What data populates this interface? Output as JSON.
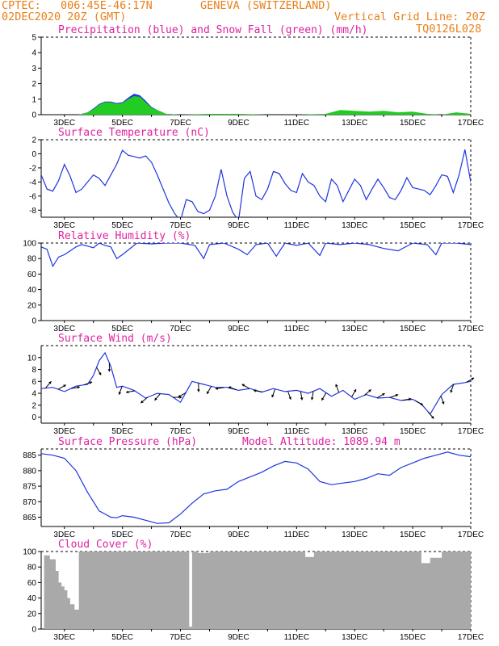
{
  "header": {
    "line1_left": "CPTEC:",
    "line1_coords": "006:45E-46:17N",
    "line1_location": "GENEVA (SWITZERLAND)",
    "line2_left": "02DEC2020 20Z (GMT)",
    "line2_grid": "Vertical Grid Line: 20Z",
    "line2_code": "TQ0126L028"
  },
  "colors": {
    "header": "#e8801a",
    "title": "#e020a0",
    "line": "#1f35e0",
    "snow": "#22cc22",
    "precip": "#1f35e0",
    "cloud": "#a9a9a9",
    "wind": "#000000"
  },
  "x_ticks": [
    "3DEC",
    "5DEC",
    "7DEC",
    "9DEC",
    "11DEC",
    "13DEC",
    "15DEC",
    "17DEC"
  ],
  "chart_data": [
    {
      "type": "area",
      "title": "Precipitation (blue) and Snow Fall (green) (mm/h)",
      "ylim": [
        0,
        5
      ],
      "yticks": [
        0,
        1,
        2,
        3,
        4,
        5
      ],
      "xlim_days": [
        2.2,
        17.0
      ],
      "x_tick_labels": [
        "3DEC",
        "5DEC",
        "7DEC",
        "9DEC",
        "11DEC",
        "13DEC",
        "15DEC",
        "17DEC"
      ],
      "series": [
        {
          "name": "Precipitation",
          "color": "blue",
          "x": [
            3.5,
            3.8,
            4.0,
            4.2,
            4.4,
            4.6,
            4.8,
            5.0,
            5.2,
            5.4,
            5.6,
            5.8,
            6.0,
            6.2,
            6.5,
            7.0
          ],
          "y": [
            0.0,
            0.15,
            0.4,
            0.7,
            0.85,
            0.85,
            0.75,
            0.8,
            1.1,
            1.35,
            1.25,
            0.9,
            0.5,
            0.3,
            0.05,
            0.0
          ]
        },
        {
          "name": "Snow Fall",
          "color": "green",
          "x": [
            3.5,
            3.8,
            4.0,
            4.2,
            4.4,
            4.6,
            4.8,
            5.0,
            5.2,
            5.4,
            5.6,
            5.8,
            6.0,
            6.2,
            6.5,
            7.0,
            8.0,
            9.0,
            10.0,
            11.0,
            12.0,
            12.5,
            13.0,
            13.5,
            14.0,
            14.5,
            15.0,
            15.5,
            16.0,
            16.5,
            17.0
          ],
          "y": [
            0.0,
            0.15,
            0.35,
            0.65,
            0.8,
            0.8,
            0.7,
            0.75,
            1.0,
            1.2,
            1.15,
            0.8,
            0.45,
            0.3,
            0.05,
            0.0,
            0.05,
            0.05,
            0.0,
            0.0,
            0.05,
            0.3,
            0.25,
            0.2,
            0.25,
            0.15,
            0.2,
            0.05,
            0.0,
            0.15,
            0.05
          ]
        }
      ]
    },
    {
      "type": "line",
      "title": "Surface Temperature (nC)",
      "ylim": [
        -9,
        2
      ],
      "yticks": [
        -8,
        -6,
        -4,
        -2,
        0,
        2
      ],
      "xlim_days": [
        2.2,
        17.0
      ],
      "x_tick_labels": [
        "3DEC",
        "5DEC",
        "7DEC",
        "9DEC",
        "11DEC",
        "13DEC",
        "15DEC",
        "17DEC"
      ],
      "series": [
        {
          "name": "Temperature",
          "x": [
            2.2,
            2.4,
            2.6,
            2.8,
            3.0,
            3.2,
            3.4,
            3.6,
            3.8,
            4.0,
            4.2,
            4.4,
            4.6,
            4.8,
            5.0,
            5.2,
            5.4,
            5.6,
            5.8,
            6.0,
            6.2,
            6.4,
            6.6,
            6.8,
            7.0,
            7.2,
            7.4,
            7.6,
            7.8,
            8.0,
            8.2,
            8.4,
            8.6,
            8.8,
            9.0,
            9.2,
            9.4,
            9.6,
            9.8,
            10.0,
            10.2,
            10.4,
            10.6,
            10.8,
            11.0,
            11.2,
            11.4,
            11.6,
            11.8,
            12.0,
            12.2,
            12.4,
            12.6,
            12.8,
            13.0,
            13.2,
            13.4,
            13.6,
            13.8,
            14.0,
            14.2,
            14.4,
            14.6,
            14.8,
            15.0,
            15.2,
            15.4,
            15.6,
            15.8,
            16.0,
            16.2,
            16.4,
            16.6,
            16.8,
            17.0
          ],
          "y": [
            -3.0,
            -5.0,
            -5.3,
            -3.8,
            -1.5,
            -3.2,
            -5.5,
            -5.0,
            -4.0,
            -3.0,
            -3.5,
            -4.5,
            -3.0,
            -1.5,
            0.5,
            -0.2,
            -0.4,
            -0.6,
            -0.3,
            -1.2,
            -3.0,
            -5.0,
            -7.0,
            -8.5,
            -9.5,
            -6.5,
            -6.8,
            -8.2,
            -8.5,
            -8.0,
            -6.0,
            -2.2,
            -6.0,
            -8.3,
            -9.5,
            -3.5,
            -2.5,
            -6.0,
            -6.5,
            -5.0,
            -2.5,
            -2.8,
            -4.2,
            -5.2,
            -5.5,
            -2.8,
            -4.0,
            -4.5,
            -6.0,
            -6.8,
            -3.6,
            -4.5,
            -6.8,
            -5.2,
            -3.6,
            -4.5,
            -6.5,
            -5.0,
            -3.6,
            -4.8,
            -6.2,
            -6.5,
            -5.2,
            -3.4,
            -4.8,
            -5.0,
            -5.2,
            -5.8,
            -4.5,
            -3.0,
            -3.2,
            -5.5,
            -3.0,
            0.6,
            -4.0
          ]
        }
      ]
    },
    {
      "type": "line",
      "title": "Relative Humidity (%)",
      "ylim": [
        0,
        100
      ],
      "yticks": [
        0,
        20,
        40,
        60,
        80,
        100
      ],
      "xlim_days": [
        2.2,
        17.0
      ],
      "x_tick_labels": [
        "3DEC",
        "5DEC",
        "7DEC",
        "9DEC",
        "11DEC",
        "13DEC",
        "15DEC",
        "17DEC"
      ],
      "series": [
        {
          "name": "Relative Humidity",
          "x": [
            2.2,
            2.4,
            2.6,
            2.8,
            3.0,
            3.2,
            3.4,
            3.6,
            3.8,
            4.0,
            4.2,
            4.4,
            4.6,
            4.8,
            5.0,
            5.5,
            6.0,
            6.5,
            7.0,
            7.5,
            7.8,
            8.0,
            8.5,
            9.0,
            9.3,
            9.6,
            10.0,
            10.3,
            10.6,
            11.0,
            11.4,
            11.8,
            12.0,
            12.5,
            13.0,
            13.5,
            14.0,
            14.5,
            15.0,
            15.5,
            15.8,
            16.0,
            16.5,
            17.0
          ],
          "y": [
            95,
            92,
            70,
            82,
            85,
            90,
            95,
            98,
            96,
            94,
            100,
            97,
            95,
            80,
            85,
            100,
            99,
            100,
            100,
            97,
            80,
            98,
            100,
            92,
            85,
            98,
            100,
            83,
            100,
            97,
            100,
            84,
            100,
            98,
            100,
            98,
            93,
            90,
            100,
            98,
            85,
            100,
            100,
            98
          ]
        }
      ]
    },
    {
      "type": "line",
      "title": "Surface Wind (m/s)",
      "ylim": [
        -1,
        12
      ],
      "yticks": [
        0,
        2,
        4,
        6,
        8,
        10
      ],
      "xlim_days": [
        2.2,
        17.0
      ],
      "x_tick_labels": [
        "3DEC",
        "5DEC",
        "7DEC",
        "9DEC",
        "11DEC",
        "13DEC",
        "15DEC",
        "17DEC"
      ],
      "series": [
        {
          "name": "Wind Speed",
          "x": [
            2.2,
            2.6,
            3.0,
            3.4,
            3.8,
            4.0,
            4.2,
            4.4,
            4.6,
            4.8,
            5.0,
            5.4,
            5.8,
            6.2,
            6.6,
            7.0,
            7.4,
            7.8,
            8.2,
            8.6,
            9.0,
            9.4,
            9.8,
            10.2,
            10.6,
            11.0,
            11.4,
            11.8,
            12.2,
            12.6,
            13.0,
            13.4,
            13.8,
            14.2,
            14.6,
            15.0,
            15.3,
            15.6,
            16.0,
            16.4,
            16.8,
            17.0
          ],
          "y": [
            4.8,
            5.0,
            4.3,
            5.2,
            5.5,
            7.0,
            9.5,
            10.8,
            8.5,
            5.0,
            5.2,
            4.5,
            3.2,
            4.0,
            3.8,
            2.5,
            6.0,
            5.5,
            5.0,
            5.0,
            4.5,
            4.8,
            4.2,
            4.8,
            4.3,
            4.5,
            4.0,
            4.8,
            3.5,
            4.5,
            3.0,
            3.8,
            3.2,
            3.3,
            2.8,
            3.0,
            2.2,
            0.5,
            3.8,
            5.5,
            5.8,
            6.0
          ]
        }
      ],
      "wind_vectors_dir_deg": [
        40,
        60,
        80,
        70,
        150,
        180,
        200,
        260,
        230,
        220,
        90,
        240,
        180,
        210,
        260,
        290,
        300,
        280,
        200,
        160,
        170,
        190,
        210,
        340,
        30,
        50,
        60,
        70,
        80,
        120,
        140,
        160,
        200,
        60
      ]
    },
    {
      "type": "line",
      "title": "Surface Pressure (hPa)",
      "annotation": "Model Altitude: 1089.94 m",
      "ylim": [
        862,
        887
      ],
      "yticks": [
        865,
        870,
        875,
        880,
        885
      ],
      "xlim_days": [
        2.2,
        17.0
      ],
      "x_tick_labels": [
        "3DEC",
        "5DEC",
        "7DEC",
        "9DEC",
        "11DEC",
        "13DEC",
        "15DEC",
        "17DEC"
      ],
      "series": [
        {
          "name": "Pressure",
          "x": [
            2.2,
            2.6,
            3.0,
            3.4,
            3.8,
            4.2,
            4.6,
            4.8,
            5.0,
            5.4,
            5.8,
            6.2,
            6.6,
            7.0,
            7.4,
            7.8,
            8.2,
            8.6,
            9.0,
            9.4,
            9.8,
            10.2,
            10.6,
            11.0,
            11.4,
            11.8,
            12.2,
            12.6,
            13.0,
            13.4,
            13.8,
            14.2,
            14.6,
            15.0,
            15.4,
            15.8,
            16.2,
            16.6,
            17.0
          ],
          "y": [
            885.5,
            885.0,
            884.0,
            880.0,
            873.0,
            867.0,
            865.0,
            864.8,
            865.5,
            865.0,
            864.0,
            863.0,
            863.2,
            866.0,
            869.5,
            872.5,
            873.5,
            874.0,
            876.5,
            878.0,
            879.5,
            881.5,
            883.0,
            882.5,
            880.5,
            876.5,
            875.5,
            876.0,
            876.5,
            877.5,
            879.0,
            878.5,
            881.0,
            882.5,
            884.0,
            885.0,
            886.0,
            885.0,
            884.5
          ]
        }
      ]
    },
    {
      "type": "bar",
      "title": "Cloud Cover (%)",
      "ylim": [
        0,
        100
      ],
      "yticks": [
        0,
        20,
        40,
        60,
        80,
        100
      ],
      "xlim_days": [
        2.2,
        17.0
      ],
      "x_tick_labels": [
        "3DEC",
        "5DEC",
        "7DEC",
        "9DEC",
        "11DEC",
        "13DEC",
        "15DEC",
        "17DEC"
      ],
      "series": [
        {
          "name": "Cloud Cover",
          "x": [
            2.3,
            2.5,
            2.7,
            2.8,
            2.9,
            3.0,
            3.1,
            3.2,
            3.35,
            3.5,
            4.0,
            5.0,
            6.0,
            7.0,
            7.3,
            7.4,
            7.6,
            8.0,
            9.0,
            10.0,
            11.0,
            11.3,
            11.6,
            12.0,
            13.0,
            14.0,
            15.0,
            15.3,
            15.6,
            16.0,
            17.0
          ],
          "y": [
            95,
            90,
            75,
            60,
            55,
            50,
            40,
            32,
            25,
            100,
            100,
            100,
            100,
            100,
            3,
            100,
            98,
            100,
            100,
            100,
            100,
            93,
            100,
            100,
            100,
            100,
            100,
            85,
            92,
            100,
            100
          ]
        }
      ]
    }
  ]
}
